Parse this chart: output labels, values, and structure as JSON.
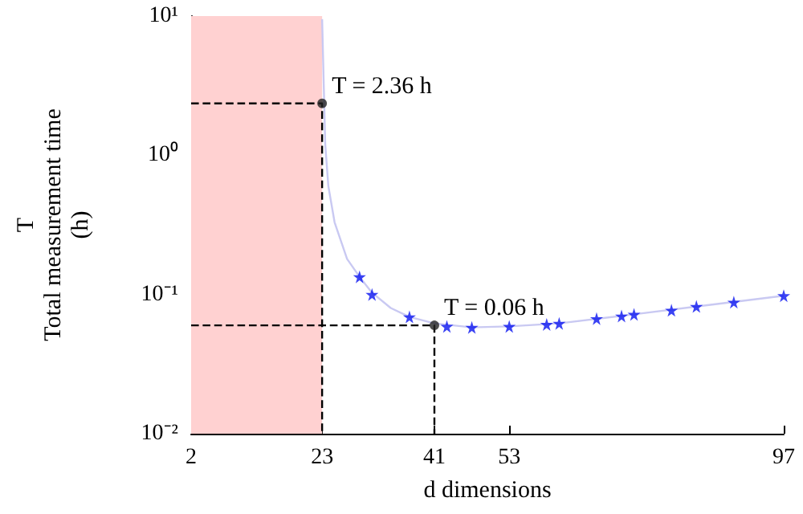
{
  "chart_data": {
    "type": "line",
    "xlabel": "d dimensions",
    "ylabel": "T\nTotal measurement time\n(h)",
    "xlim": [
      2,
      97
    ],
    "xticks": [
      2,
      23,
      41,
      53,
      97
    ],
    "ylim": [
      0.01,
      10
    ],
    "yticks": [
      {
        "value": 0.01,
        "label": "10⁻²"
      },
      {
        "value": 0.1,
        "label": "10⁻¹"
      },
      {
        "value": 1,
        "label": "10⁰"
      },
      {
        "value": 10,
        "label": "10¹"
      }
    ],
    "log": "y",
    "bands": [
      {
        "axis": "x",
        "from": 2,
        "to": 23,
        "color": "#ffd1d1"
      }
    ],
    "series": [
      {
        "color": "#c9c9f2",
        "marker": "none",
        "line_style": "solid",
        "x": [
          23,
          23.5,
          24,
          25,
          27,
          29,
          31,
          34,
          37,
          41,
          47,
          53,
          61,
          73,
          85,
          97
        ],
        "values": [
          9.5,
          1.2,
          0.6,
          0.33,
          0.18,
          0.134,
          0.103,
          0.08,
          0.069,
          0.062,
          0.058,
          0.059,
          0.062,
          0.072,
          0.084,
          0.098
        ]
      },
      {
        "type": "scatter",
        "color": "#0a14f0",
        "marker": "star",
        "x": [
          29,
          31,
          37,
          43,
          47,
          53,
          59,
          61,
          67,
          71,
          73,
          79,
          83,
          89,
          97
        ],
        "values": [
          0.134,
          0.1,
          0.069,
          0.059,
          0.058,
          0.059,
          0.061,
          0.062,
          0.067,
          0.07,
          0.072,
          0.077,
          0.082,
          0.088,
          0.098
        ]
      },
      {
        "color": "#000000",
        "marker": "none",
        "line_style": "dashed",
        "x": [
          2,
          23,
          23
        ],
        "values": [
          2.36,
          2.36,
          0.01
        ]
      },
      {
        "color": "#000000",
        "marker": "none",
        "line_style": "dashed",
        "x": [
          2,
          41,
          41
        ],
        "values": [
          0.06,
          0.06,
          0.01
        ]
      },
      {
        "type": "scatter",
        "color": "#222222",
        "marker": "circle",
        "x": [
          23,
          41
        ],
        "values": [
          2.36,
          0.06
        ]
      }
    ],
    "annotations": [
      {
        "text": "T = 2.36 h",
        "x": 23,
        "y": 2.36
      },
      {
        "text": "T = 0.06 h",
        "x": 41,
        "y": 0.06
      }
    ]
  }
}
